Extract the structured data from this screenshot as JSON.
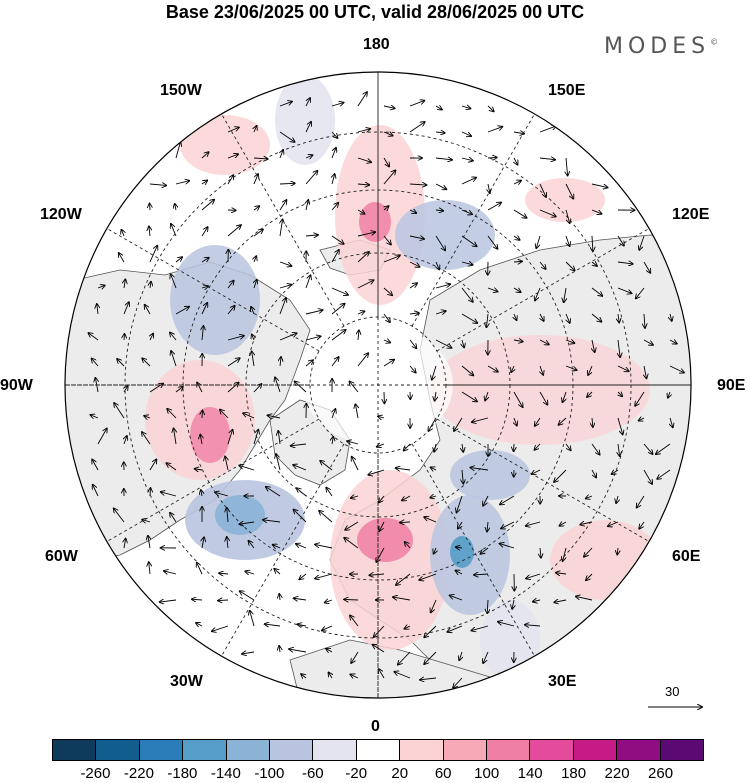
{
  "title": "Base 23/06/2025 00 UTC, valid 28/06/2025 00 UTC",
  "brand": {
    "name": "MODES",
    "mark": "©"
  },
  "longitude_labels": [
    "180",
    "150E",
    "120E",
    "90E",
    "60E",
    "30E",
    "0",
    "30W",
    "60W",
    "90W",
    "120W",
    "150W"
  ],
  "reference_vector": {
    "label": "30"
  },
  "colorbar": {
    "colors": [
      "#0e3a5c",
      "#115d8e",
      "#2a7db8",
      "#569dc9",
      "#8ab3d6",
      "#b9c5e0",
      "#e4e4f1",
      "#ffffff",
      "#fbd3d5",
      "#f6a9b6",
      "#f07fa6",
      "#e44b9d",
      "#c61a86",
      "#8f0c81",
      "#5b0a73"
    ],
    "labels": [
      "-260",
      "-220",
      "-180",
      "-140",
      "-100",
      "-60",
      "-20",
      "20",
      "60",
      "100",
      "140",
      "180",
      "220",
      "260"
    ]
  },
  "colors": {
    "land": "#ececec",
    "coast": "#555555",
    "grid": "#222222"
  }
}
